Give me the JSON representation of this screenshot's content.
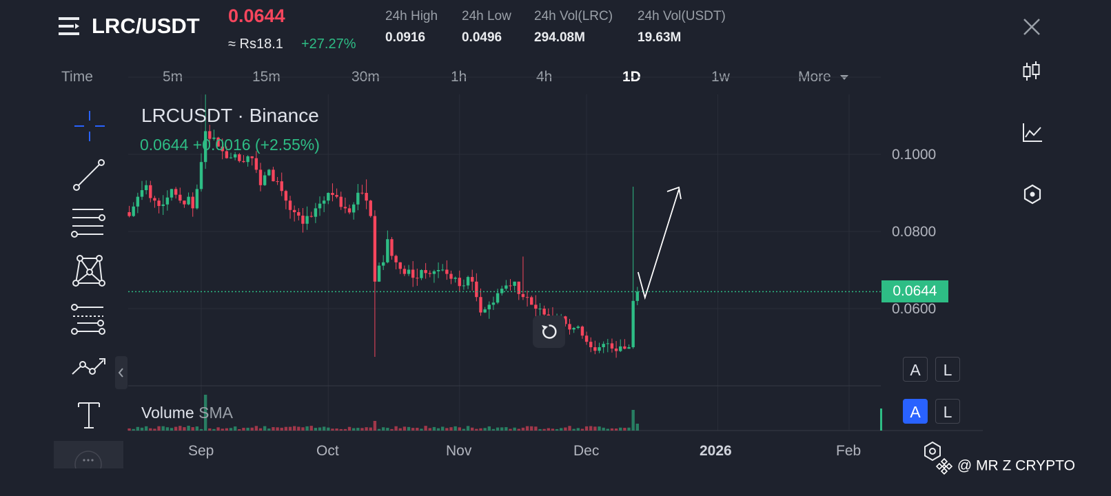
{
  "header": {
    "pair": "LRC/USDT",
    "price": "0.0644",
    "local_price": "≈ Rs18.1",
    "change_pct": "+27.27%",
    "stats": [
      {
        "label": "24h High",
        "value": "0.0916"
      },
      {
        "label": "24h Low",
        "value": "0.0496"
      },
      {
        "label": "24h Vol(LRC)",
        "value": "294.08M"
      },
      {
        "label": "24h Vol(USDT)",
        "value": "19.63M"
      }
    ]
  },
  "timeframes": [
    "Time",
    "5m",
    "15m",
    "30m",
    "1h",
    "4h",
    "1D",
    "1w",
    "More"
  ],
  "active_timeframe": "1D",
  "chart_data": {
    "type": "candlestick",
    "title": "LRCUSDT · Binance",
    "legend_line": {
      "last": "0.0644",
      "change": "+0.0016 (+2.55%)"
    },
    "volume_legend": {
      "label": "Volume",
      "indicator": "SMA"
    },
    "y_ticks": [
      "0.1000",
      "0.0800",
      "0.0600"
    ],
    "y_tick_values": [
      0.1,
      0.08,
      0.06
    ],
    "ylim": [
      0.0415,
      0.1155
    ],
    "last_price_label": "0.0644",
    "last_price": 0.0644,
    "x_ticks": [
      {
        "label": "Sep",
        "day": 18
      },
      {
        "label": "Oct",
        "day": 48
      },
      {
        "label": "Nov",
        "day": 79
      },
      {
        "label": "Dec",
        "day": 109
      },
      {
        "label": "2026",
        "day": 140
      },
      {
        "label": "Feb",
        "day": 171
      }
    ],
    "x_start_day": 1,
    "anchors": [
      [
        1,
        0.084
      ],
      [
        3,
        0.089
      ],
      [
        5,
        0.092
      ],
      [
        7,
        0.088
      ],
      [
        9,
        0.087
      ],
      [
        11,
        0.091
      ],
      [
        13,
        0.088
      ],
      [
        15,
        0.089
      ],
      [
        16,
        0.086
      ],
      [
        17,
        0.091
      ],
      [
        18,
        0.098
      ],
      [
        19,
        0.106
      ],
      [
        20,
        0.104
      ],
      [
        22,
        0.102
      ],
      [
        24,
        0.099
      ],
      [
        26,
        0.1
      ],
      [
        28,
        0.098
      ],
      [
        30,
        0.099
      ],
      [
        31,
        0.096
      ],
      [
        32,
        0.092
      ],
      [
        34,
        0.096
      ],
      [
        36,
        0.093
      ],
      [
        38,
        0.088
      ],
      [
        40,
        0.085
      ],
      [
        42,
        0.082
      ],
      [
        43,
        0.084
      ],
      [
        45,
        0.086
      ],
      [
        47,
        0.088
      ],
      [
        48,
        0.09
      ],
      [
        50,
        0.089
      ],
      [
        52,
        0.086
      ],
      [
        54,
        0.087
      ],
      [
        56,
        0.09
      ],
      [
        57,
        0.088
      ],
      [
        58,
        0.084
      ],
      [
        59,
        0.067
      ],
      [
        61,
        0.072
      ],
      [
        62,
        0.078
      ],
      [
        64,
        0.072
      ],
      [
        66,
        0.069
      ],
      [
        68,
        0.068
      ],
      [
        70,
        0.07
      ],
      [
        72,
        0.069
      ],
      [
        74,
        0.07
      ],
      [
        76,
        0.069
      ],
      [
        78,
        0.068
      ],
      [
        80,
        0.066
      ],
      [
        82,
        0.067
      ],
      [
        83,
        0.063
      ],
      [
        84,
        0.059
      ],
      [
        86,
        0.061
      ],
      [
        88,
        0.064
      ],
      [
        90,
        0.066
      ],
      [
        92,
        0.067
      ],
      [
        94,
        0.063
      ],
      [
        96,
        0.061
      ],
      [
        98,
        0.06
      ],
      [
        100,
        0.058
      ],
      [
        102,
        0.057
      ],
      [
        104,
        0.056
      ],
      [
        106,
        0.055
      ],
      [
        108,
        0.053
      ],
      [
        110,
        0.05
      ],
      [
        112,
        0.05
      ],
      [
        114,
        0.051
      ],
      [
        116,
        0.049
      ],
      [
        118,
        0.0496
      ],
      [
        119,
        0.05
      ],
      [
        120,
        0.062
      ],
      [
        121,
        0.0644
      ]
    ],
    "annotation": "arrow",
    "grid": true
  },
  "watermark": "@ MR Z CRYPTO",
  "toggles": {
    "auto": "A",
    "log": "L"
  },
  "colors": {
    "background": "#1e222d",
    "up": "#2ebd85",
    "down": "#f6465d",
    "grid": "#2a2e39",
    "accent": "#2962ff"
  },
  "icons": {
    "menu": "menu-icon",
    "close": "close-icon",
    "candle": "candlestick-icon",
    "indicator": "indicator-icon",
    "hex": "hexagon-icon",
    "reset": "reset-icon"
  }
}
